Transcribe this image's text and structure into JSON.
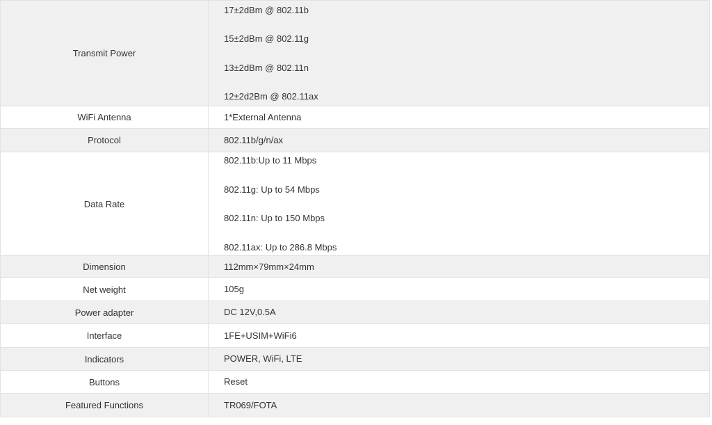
{
  "theme": {
    "stripe_bg": "#f0f0f0",
    "row_bg": "#ffffff",
    "border": "#e2e2e2",
    "text": "#333333"
  },
  "table": {
    "rows": [
      {
        "label": "Transmit Power",
        "values": [
          "17±2dBm @ 802.11b",
          "15±2dBm @ 802.11g",
          "13±2dBm @ 802.11n",
          "12±2d2Bm @ 802.11ax"
        ]
      },
      {
        "label": "WiFi Antenna",
        "values": [
          "1*External Antenna"
        ]
      },
      {
        "label": "Protocol",
        "values": [
          "802.11b/g/n/ax"
        ]
      },
      {
        "label": "Data Rate",
        "values": [
          "802.11b:Up to 11 Mbps",
          "802.11g: Up to 54 Mbps",
          "802.11n: Up to 150 Mbps",
          "802.11ax: Up to 286.8 Mbps"
        ]
      },
      {
        "label": "Dimension",
        "values": [
          "112mm×79mm×24mm"
        ]
      },
      {
        "label": "Net weight",
        "values": [
          "105g"
        ]
      },
      {
        "label": "Power adapter",
        "values": [
          "DC 12V,0.5A"
        ]
      },
      {
        "label": "Interface",
        "values": [
          "1FE+USIM+WiFi6"
        ]
      },
      {
        "label": "Indicators",
        "values": [
          "POWER, WiFi, LTE"
        ]
      },
      {
        "label": "Buttons",
        "values": [
          "Reset"
        ]
      },
      {
        "label": "Featured Functions",
        "values": [
          "TR069/FOTA"
        ]
      }
    ]
  }
}
